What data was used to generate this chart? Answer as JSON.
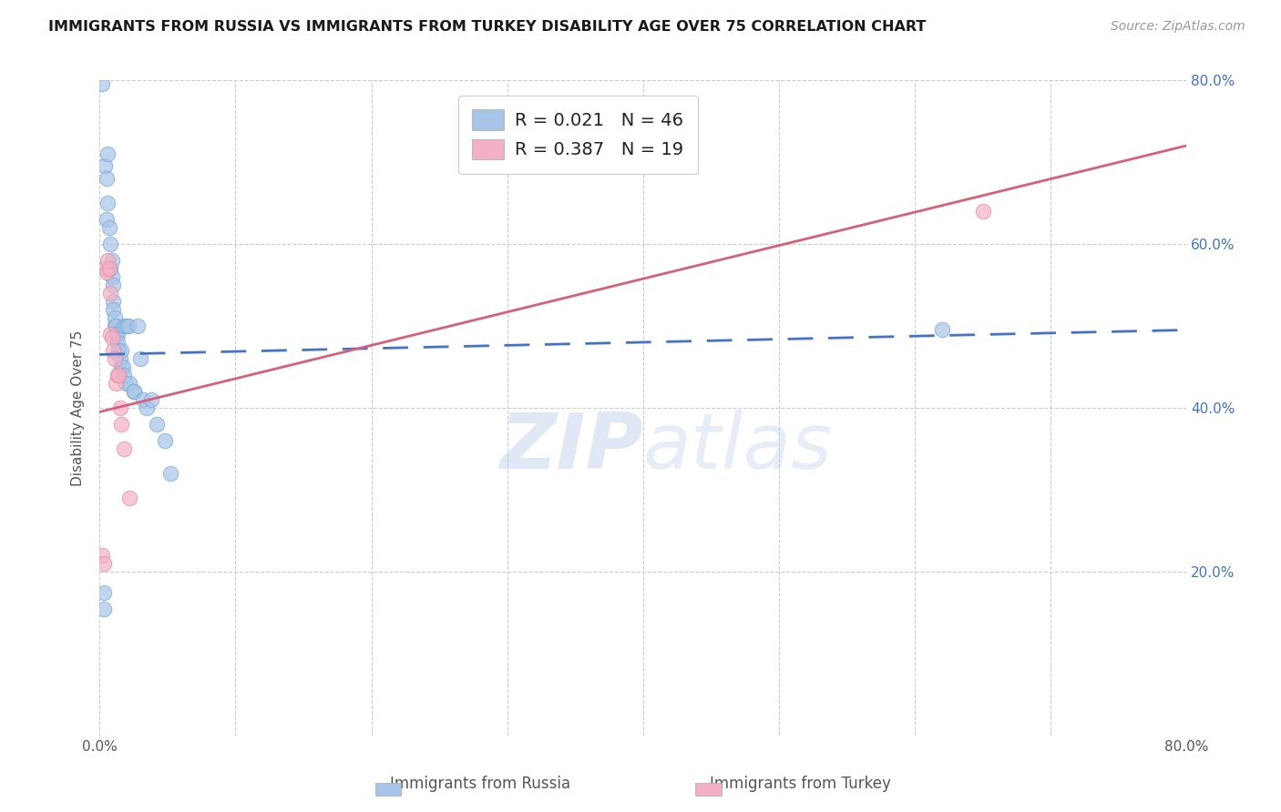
{
  "title": "IMMIGRANTS FROM RUSSIA VS IMMIGRANTS FROM TURKEY DISABILITY AGE OVER 75 CORRELATION CHART",
  "source": "Source: ZipAtlas.com",
  "ylabel": "Disability Age Over 75",
  "xlim": [
    0.0,
    0.8
  ],
  "ylim": [
    0.0,
    0.8
  ],
  "legend_russia_r": "0.021",
  "legend_russia_n": "46",
  "legend_turkey_r": "0.387",
  "legend_turkey_n": "19",
  "russia_color": "#a8c4e8",
  "russia_edge": "#7aaad4",
  "turkey_color": "#f4b0c4",
  "turkey_edge": "#e090a8",
  "russia_line_color": "#4472c4",
  "turkey_line_color": "#d4607a",
  "watermark_color": "#ccdcf0",
  "russia_line_x": [
    0.0,
    0.8
  ],
  "russia_line_y": [
    0.465,
    0.495
  ],
  "turkey_line_x": [
    0.0,
    0.8
  ],
  "turkey_line_y": [
    0.395,
    0.72
  ],
  "russia_x": [
    0.002,
    0.003,
    0.003,
    0.004,
    0.005,
    0.005,
    0.006,
    0.006,
    0.007,
    0.007,
    0.008,
    0.008,
    0.009,
    0.009,
    0.01,
    0.01,
    0.01,
    0.011,
    0.011,
    0.012,
    0.012,
    0.013,
    0.013,
    0.014,
    0.014,
    0.015,
    0.016,
    0.016,
    0.017,
    0.018,
    0.018,
    0.019,
    0.02,
    0.021,
    0.022,
    0.025,
    0.025,
    0.028,
    0.03,
    0.032,
    0.035,
    0.038,
    0.042,
    0.048,
    0.052,
    0.62
  ],
  "russia_y": [
    0.795,
    0.155,
    0.175,
    0.695,
    0.68,
    0.63,
    0.71,
    0.65,
    0.62,
    0.57,
    0.6,
    0.57,
    0.58,
    0.56,
    0.55,
    0.53,
    0.52,
    0.51,
    0.5,
    0.5,
    0.49,
    0.49,
    0.48,
    0.47,
    0.47,
    0.46,
    0.47,
    0.45,
    0.45,
    0.5,
    0.44,
    0.43,
    0.5,
    0.5,
    0.43,
    0.42,
    0.42,
    0.5,
    0.46,
    0.41,
    0.4,
    0.41,
    0.38,
    0.36,
    0.32,
    0.495
  ],
  "turkey_x": [
    0.002,
    0.003,
    0.004,
    0.005,
    0.006,
    0.007,
    0.008,
    0.008,
    0.009,
    0.01,
    0.011,
    0.012,
    0.013,
    0.014,
    0.015,
    0.016,
    0.018,
    0.022,
    0.65
  ],
  "turkey_y": [
    0.22,
    0.21,
    0.57,
    0.565,
    0.58,
    0.57,
    0.54,
    0.49,
    0.485,
    0.47,
    0.46,
    0.43,
    0.44,
    0.44,
    0.4,
    0.38,
    0.35,
    0.29,
    0.64
  ]
}
